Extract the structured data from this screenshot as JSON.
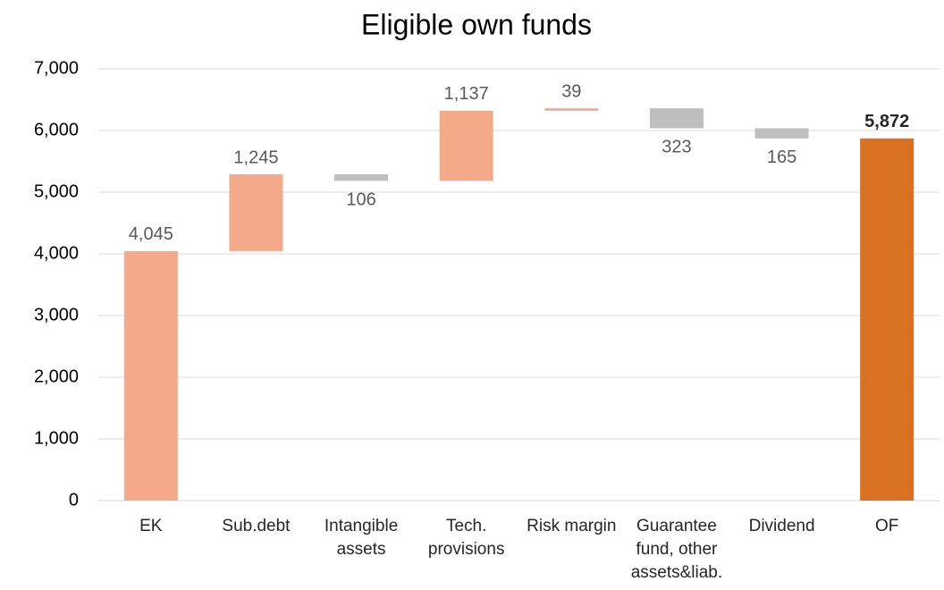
{
  "chart_data": {
    "type": "waterfall",
    "title": "Eligible own funds",
    "categories": [
      "EK",
      "Sub.debt",
      "Intangible assets",
      "Tech. provisions",
      "Risk margin",
      "Guarantee fund, other assets&liab.",
      "Dividend",
      "OF"
    ],
    "values": [
      4045,
      1245,
      -106,
      1137,
      39,
      -323,
      -165,
      5872
    ],
    "value_labels": [
      "4,045",
      "1,245",
      "106",
      "1,137",
      "39",
      "323",
      "165",
      "5,872"
    ],
    "totals": [
      false,
      false,
      false,
      false,
      false,
      false,
      false,
      true
    ],
    "increase_color": "#f4aa8a",
    "decrease_color": "#bfbfbf",
    "total_color": "#d97122",
    "ylim": [
      0,
      7000
    ],
    "yticks": [
      0,
      {
        "value": 1000,
        "label": "1,000"
      },
      {
        "value": 2000,
        "label": "2,000"
      },
      {
        "value": 3000,
        "label": "3,000"
      },
      {
        "value": 4000,
        "label": "4,000"
      },
      {
        "value": 5000,
        "label": "5,000"
      },
      {
        "value": 6000,
        "label": "6,000"
      },
      {
        "value": 7000,
        "label": "7,000"
      }
    ],
    "grid": true
  }
}
